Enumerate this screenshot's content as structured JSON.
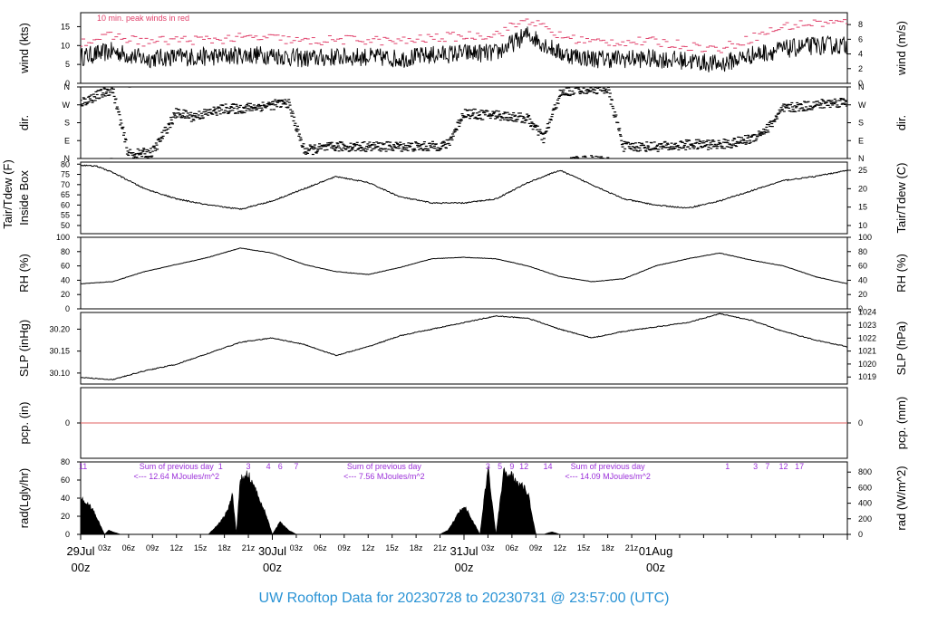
{
  "title": "UW Rooftop Data for 20230728  to  20230731 @ 23:57:00  (UTC)",
  "colors": {
    "title": "#2a93d5",
    "date": "#e0406a",
    "peak": "#e0406a",
    "annotation": "#9b30d9",
    "pcp_line": "#e06060",
    "trace": "#000000"
  },
  "x_axis": {
    "hour_ticks": [
      "03z",
      "06z",
      "09z",
      "12z",
      "15z",
      "18z",
      "21z",
      "03z",
      "06z",
      "09z",
      "12z",
      "15z",
      "18z",
      "21z",
      "03z",
      "06z",
      "09z",
      "12z",
      "15z",
      "18z",
      "21z"
    ],
    "dates": [
      {
        "top": "29Jul",
        "bottom": "00z"
      },
      {
        "top": "30Jul",
        "bottom": "00z"
      },
      {
        "top": "31Jul",
        "bottom": "00z"
      },
      {
        "top": "01Aug",
        "bottom": "00z"
      }
    ]
  },
  "chart_data": [
    {
      "type": "line",
      "ylabel": "wind (kts)",
      "ylabel_right": "wind (m/s)",
      "note": "10 min. peak winds in red",
      "ylim": [
        0,
        18.7
      ],
      "yticks": [
        0,
        5,
        10,
        15
      ],
      "yticks_right": [
        0,
        2,
        4,
        6,
        8
      ],
      "series": [
        {
          "role": "mean",
          "x_hours": [
            0,
            4,
            8,
            12,
            16,
            20,
            24,
            28,
            32,
            36,
            40,
            44,
            48,
            52,
            56,
            60,
            64,
            68,
            72,
            76,
            80,
            84,
            88,
            92,
            96
          ],
          "values": [
            7,
            8.5,
            6.5,
            7,
            7,
            7.5,
            7.5,
            6.5,
            7,
            7,
            6.5,
            7.5,
            8,
            8,
            13,
            8,
            6.5,
            6.5,
            6.5,
            6,
            5,
            7.5,
            9,
            10,
            10
          ]
        },
        {
          "role": "peak",
          "x_hours": [
            0,
            4,
            8,
            12,
            16,
            20,
            24,
            28,
            32,
            36,
            40,
            44,
            48,
            52,
            56,
            60,
            64,
            68,
            72,
            76,
            80,
            84,
            88,
            92,
            96
          ],
          "values": [
            11,
            12.5,
            11,
            11.5,
            11.5,
            12,
            12,
            11,
            11.5,
            11.5,
            11,
            12,
            12.5,
            13,
            17,
            12.5,
            11,
            11,
            11,
            10,
            9,
            12,
            15,
            16,
            16
          ]
        }
      ]
    },
    {
      "type": "scatter",
      "ylabel": "dir.",
      "ylabel_right": "dir.",
      "ylim": [
        0,
        360
      ],
      "yticks": [
        "N",
        "E",
        "S",
        "W",
        "N"
      ],
      "series": [
        {
          "role": "direction_deg",
          "x_hours": [
            0,
            4,
            6,
            9,
            12,
            14,
            16,
            18,
            20,
            22,
            24,
            26,
            28,
            30,
            32,
            34,
            36,
            38,
            40,
            42,
            44,
            46,
            48,
            50,
            52,
            54,
            56,
            58,
            60,
            62,
            64,
            66,
            68,
            70,
            72,
            74,
            76,
            78,
            80,
            82,
            84,
            86,
            88,
            90,
            92,
            94,
            96
          ],
          "values": [
            280,
            350,
            20,
            30,
            230,
            210,
            230,
            250,
            250,
            260,
            270,
            280,
            40,
            50,
            60,
            60,
            60,
            60,
            60,
            60,
            60,
            70,
            230,
            220,
            220,
            210,
            200,
            100,
            320,
            350,
            350,
            350,
            60,
            60,
            60,
            60,
            70,
            70,
            70,
            80,
            100,
            150,
            250,
            260,
            270,
            280,
            285
          ]
        }
      ]
    },
    {
      "type": "line",
      "ylabel": "Inside Box",
      "ylabel_extra": "Tair/Tdew (F)",
      "ylabel_right": "Tair/Tdew (C)",
      "ylim": [
        46,
        81
      ],
      "yticks": [
        50,
        55,
        60,
        65,
        70,
        75,
        80
      ],
      "yticks_right": [
        10,
        15,
        20,
        25
      ],
      "series": [
        {
          "role": "air_temperature",
          "x_hours": [
            0,
            2,
            4,
            8,
            12,
            16,
            20,
            24,
            28,
            32,
            36,
            40,
            44,
            48,
            52,
            56,
            60,
            64,
            68,
            72,
            76,
            80,
            84,
            88,
            92,
            96
          ],
          "values": [
            79.5,
            79,
            76,
            68,
            63,
            60,
            58,
            62,
            68,
            74,
            71,
            64,
            61,
            61,
            63,
            71,
            77,
            70,
            63,
            60,
            58.5,
            62,
            67,
            72,
            74,
            77
          ]
        }
      ]
    },
    {
      "type": "line",
      "ylabel": "RH (%)",
      "ylabel_right": "RH (%)",
      "ylim": [
        0,
        100
      ],
      "yticks": [
        0,
        20,
        40,
        60,
        80,
        100
      ],
      "yticks_right": [
        0,
        20,
        40,
        60,
        80,
        100
      ],
      "series": [
        {
          "role": "relative_humidity",
          "x_hours": [
            0,
            4,
            8,
            12,
            16,
            20,
            24,
            28,
            32,
            36,
            40,
            44,
            48,
            52,
            56,
            60,
            64,
            68,
            72,
            76,
            80,
            84,
            88,
            92,
            96
          ],
          "values": [
            35,
            38,
            52,
            62,
            72,
            85,
            78,
            62,
            52,
            48,
            58,
            70,
            72,
            70,
            60,
            45,
            38,
            42,
            60,
            70,
            78,
            68,
            60,
            45,
            35
          ]
        }
      ]
    },
    {
      "type": "line",
      "ylabel": "SLP (inHg)",
      "ylabel_right": "SLP (hPa)",
      "ylim": [
        30.075,
        30.238
      ],
      "yticks": [
        30.1,
        30.15,
        30.2
      ],
      "yticks_right": [
        1019,
        1020,
        1021,
        1022,
        1023,
        1024
      ],
      "series": [
        {
          "role": "sea_level_pressure",
          "x_hours": [
            0,
            4,
            8,
            12,
            16,
            20,
            24,
            28,
            32,
            36,
            40,
            44,
            48,
            52,
            56,
            60,
            64,
            68,
            72,
            76,
            80,
            84,
            88,
            92,
            96
          ],
          "values": [
            30.09,
            30.085,
            30.105,
            30.12,
            30.145,
            30.17,
            30.18,
            30.165,
            30.14,
            30.16,
            30.185,
            30.2,
            30.215,
            30.23,
            30.225,
            30.2,
            30.18,
            30.195,
            30.205,
            30.215,
            30.235,
            30.22,
            30.195,
            30.175,
            30.16
          ]
        }
      ]
    },
    {
      "type": "line",
      "ylabel": "pcp. (in)",
      "ylabel_right": "pcp. (mm)",
      "ylim": [
        -1,
        1
      ],
      "yticks": [
        0
      ],
      "yticks_right": [
        0
      ],
      "series": [
        {
          "role": "precipitation",
          "x_hours": [
            0,
            96
          ],
          "values": [
            0,
            0
          ]
        }
      ]
    },
    {
      "type": "area",
      "ylabel": "rad(Lgly/hr)",
      "ylabel_right": "rad (W/m^2)",
      "ylim": [
        0,
        80
      ],
      "yticks": [
        0,
        20,
        40,
        60,
        80
      ],
      "yticks_right": [
        0,
        200,
        400,
        600,
        800
      ],
      "series": [
        {
          "role": "solar_radiation",
          "x_hours": [
            0,
            0.5,
            1.5,
            3,
            3.5,
            4,
            5,
            5.5,
            16,
            16.5,
            17,
            17.5,
            18,
            18.5,
            19,
            19.5,
            20,
            21,
            22,
            23,
            24,
            25,
            26,
            27,
            28,
            28.5,
            29,
            30,
            31,
            32,
            33,
            34,
            45,
            46,
            47,
            48,
            50,
            51,
            52,
            53,
            54,
            55,
            56,
            57,
            58,
            59,
            60,
            61,
            61.5,
            62,
            63,
            64,
            66,
            72,
            76,
            78,
            80,
            81,
            84,
            84.5,
            85,
            86,
            87,
            88,
            89,
            90,
            91,
            92,
            93,
            94,
            95,
            96
          ],
          "values": [
            42,
            40,
            30,
            0,
            5,
            3,
            0,
            0,
            0,
            5,
            10,
            15,
            22,
            30,
            50,
            0,
            65,
            72,
            50,
            30,
            0,
            15,
            5,
            0,
            0,
            0,
            0,
            0,
            0,
            0,
            0,
            0,
            0,
            5,
            20,
            35,
            0,
            80,
            0,
            75,
            70,
            60,
            50,
            0,
            0,
            3,
            0,
            0,
            0,
            0,
            0,
            0,
            0,
            0,
            0,
            0,
            0,
            0,
            0,
            0,
            0,
            0,
            0,
            0,
            0,
            0,
            0,
            0,
            0,
            0,
            0,
            0
          ]
        }
      ],
      "daily_notes": [
        {
          "x_hours": 12,
          "lines": [
            "Sum of previous day",
            "<--- 12.64 MJoules/m^2"
          ]
        },
        {
          "x_hours": 38,
          "lines": [
            "Sum of previous day",
            "<--- 7.56 MJoules/m^2"
          ]
        },
        {
          "x_hours": 66,
          "lines": [
            "Sum of previous day",
            "<--- 14.09 MJoules/m^2"
          ]
        }
      ],
      "top_markers": [
        {
          "x_hours": 0.3,
          "label": "11"
        },
        {
          "x_hours": 17.5,
          "label": "1"
        },
        {
          "x_hours": 21,
          "label": "3"
        },
        {
          "x_hours": 23.5,
          "label": "4"
        },
        {
          "x_hours": 25,
          "label": "6"
        },
        {
          "x_hours": 27,
          "label": "7"
        },
        {
          "x_hours": 51,
          "label": "3"
        },
        {
          "x_hours": 52.5,
          "label": "5"
        },
        {
          "x_hours": 54,
          "label": "9"
        },
        {
          "x_hours": 55.5,
          "label": "12"
        },
        {
          "x_hours": 58.5,
          "label": "14"
        },
        {
          "x_hours": 81,
          "label": "1"
        },
        {
          "x_hours": 84.5,
          "label": "3"
        },
        {
          "x_hours": 86,
          "label": "7"
        },
        {
          "x_hours": 88,
          "label": "12"
        },
        {
          "x_hours": 90,
          "label": "17"
        }
      ]
    }
  ]
}
